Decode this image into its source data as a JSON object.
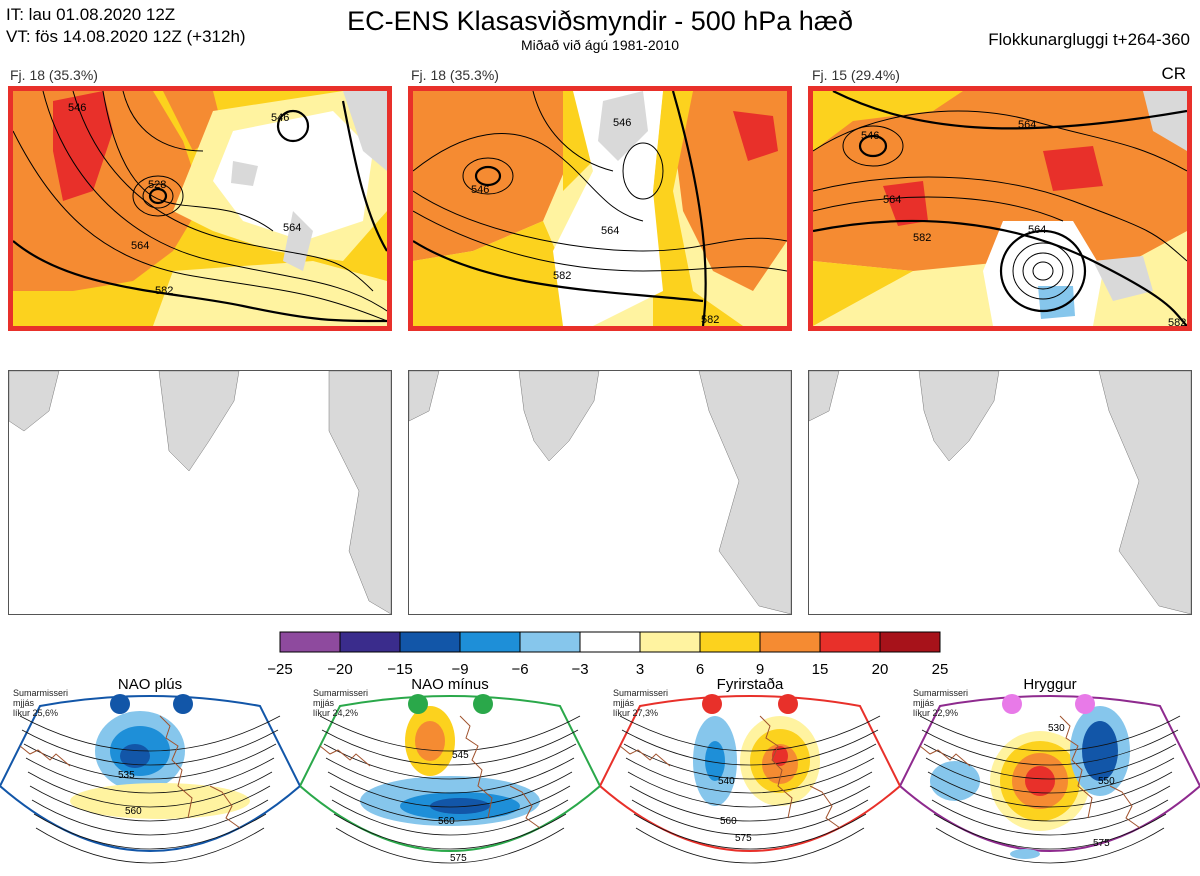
{
  "header": {
    "it": "IT: lau 01.08.2020 12Z",
    "vt": "VT: fös 14.08.2020 12Z  (+312h)",
    "title": "EC-ENS Klasasviðsmyndir - 500 hPa hæð",
    "subtitle": "Miðað við ágú 1981-2010",
    "window": "Flokkunargluggi t+264-360",
    "regime_code": "CR"
  },
  "panels": [
    {
      "label": "Fj. 18 (35.3%)",
      "contours": [
        "546",
        "528",
        "564",
        "582",
        "546",
        "564"
      ]
    },
    {
      "label": "Fj. 18 (35.3%)",
      "contours": [
        "546",
        "546",
        "564",
        "582",
        "582"
      ]
    },
    {
      "label": "Fj. 15 (29.4%)",
      "contours": [
        "546",
        "564",
        "564",
        "582",
        "564",
        "582"
      ]
    }
  ],
  "colorbar": {
    "ticks": [
      "−25",
      "−20",
      "−15",
      "−9",
      "−6",
      "−3",
      "3",
      "6",
      "9",
      "15",
      "20",
      "25"
    ],
    "colors": [
      "#8e4a9e",
      "#3a2c8c",
      "#1256a8",
      "#1e8fd8",
      "#86c6ec",
      "#ffffff",
      "#fff3a0",
      "#fcd21e",
      "#f58b32",
      "#e8302a",
      "#a7121a"
    ]
  },
  "regimes": [
    {
      "name": "NAO plús",
      "meta": [
        "Sumarmisseri",
        "mjjás",
        "líkur 25,6%"
      ],
      "color": "#1256a8",
      "dot": "#1256a8",
      "labels": [
        "535",
        "560"
      ]
    },
    {
      "name": "NAO mínus",
      "meta": [
        "Sumarmisseri",
        "mjjás",
        "líkur 24,2%"
      ],
      "color": "#2aa84a",
      "dot": "#2aa84a",
      "labels": [
        "545",
        "560",
        "575"
      ]
    },
    {
      "name": "Fyrirstaða",
      "meta": [
        "Sumarmisseri",
        "mjjás",
        "líkur 27,3%"
      ],
      "color": "#e8302a",
      "dot": "#e8302a",
      "labels": [
        "540",
        "560",
        "575"
      ]
    },
    {
      "name": "Hryggur",
      "meta": [
        "Sumarmisseri",
        "mjjás",
        "líkur 22,9%"
      ],
      "color": "#8e2a8e",
      "dot": "#e87ae8",
      "labels": [
        "530",
        "550",
        "575"
      ]
    }
  ]
}
